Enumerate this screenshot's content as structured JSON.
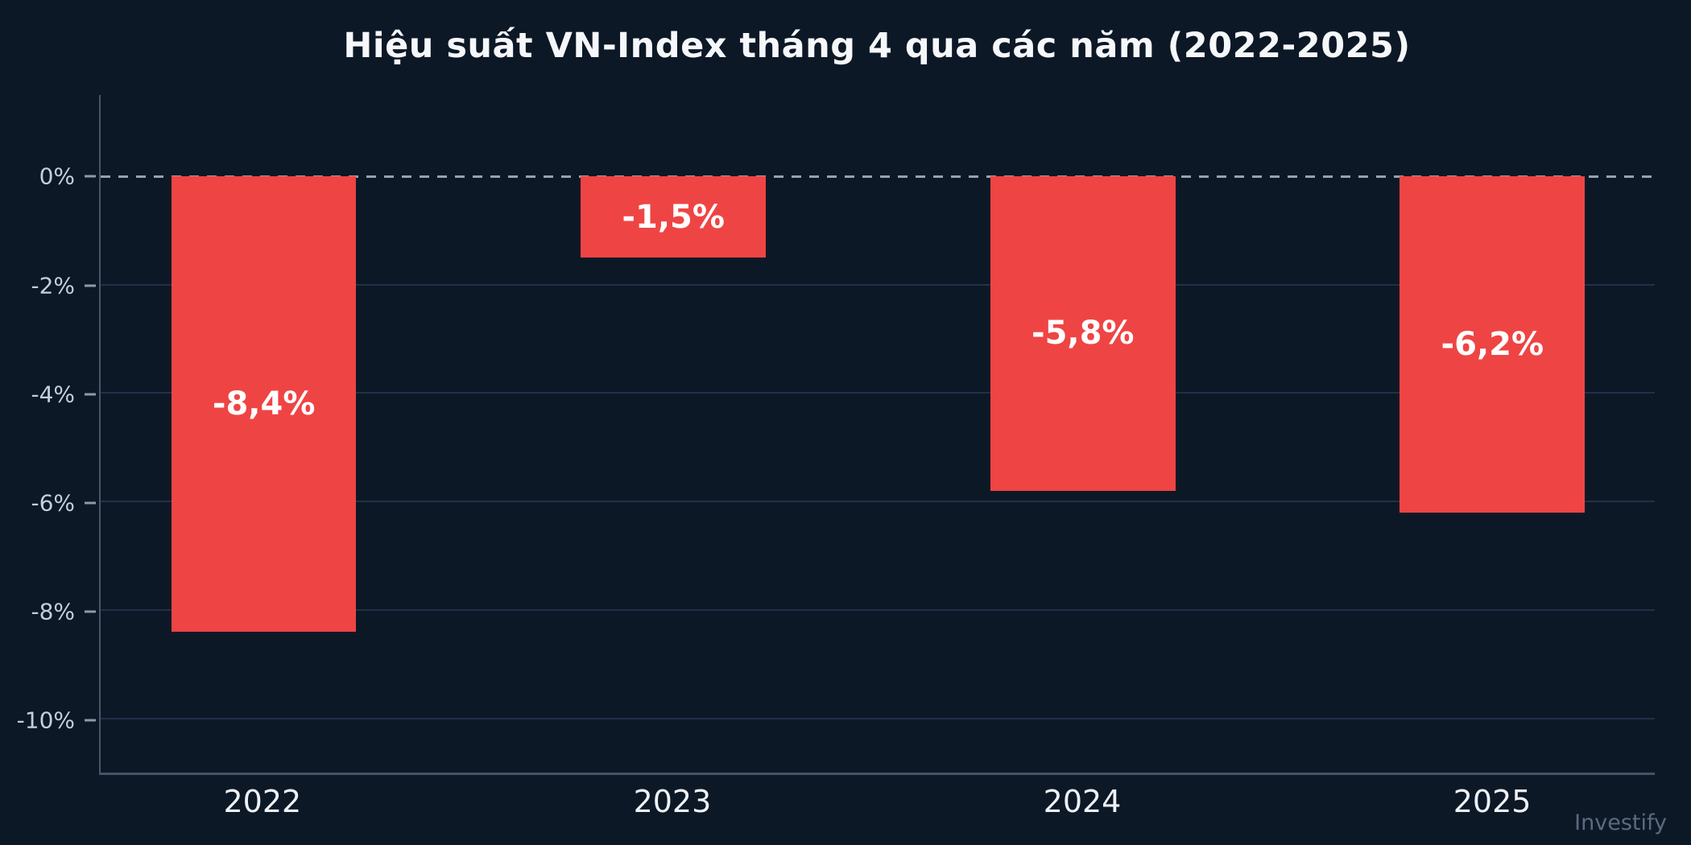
{
  "title": "Hiệu suất VN-Index tháng 4 qua các năm (2022-2025)",
  "watermark": "Investify",
  "colors": {
    "background": "#0d1826",
    "bar": "#ef4444",
    "bar_label": "#ffffff",
    "gridline": "#223049",
    "zero_line": "#93a2b4",
    "y_axis_line": "#47566a",
    "x_axis_line": "#44536a",
    "y_tick_label": "#c4cfdd",
    "x_tick_label": "#eef2f8",
    "title": "#f5f7fa",
    "watermark": "#5a6a80"
  },
  "chart_data": {
    "type": "bar",
    "title": "Hiệu suất VN-Index tháng 4 qua các năm (2022-2025)",
    "categories": [
      "2022",
      "2023",
      "2024",
      "2025"
    ],
    "values": [
      -8.4,
      -1.5,
      -5.8,
      -6.2
    ],
    "bar_labels": [
      "-8,4%",
      "-1,5%",
      "-5,8%",
      "-6,2%"
    ],
    "xlabel": "",
    "ylabel": "",
    "ylim": [
      -11,
      1.5
    ],
    "yticks": {
      "values": [
        0,
        -2,
        -4,
        -6,
        -8,
        -10
      ],
      "labels": [
        "0%",
        "-2%",
        "-4%",
        "-6%",
        "-8%",
        "-10%"
      ]
    },
    "grid": true,
    "zero_line_style": "dashed",
    "legend": "none",
    "bar_color": "#ef4444",
    "value_label_position": "center-of-bar"
  }
}
